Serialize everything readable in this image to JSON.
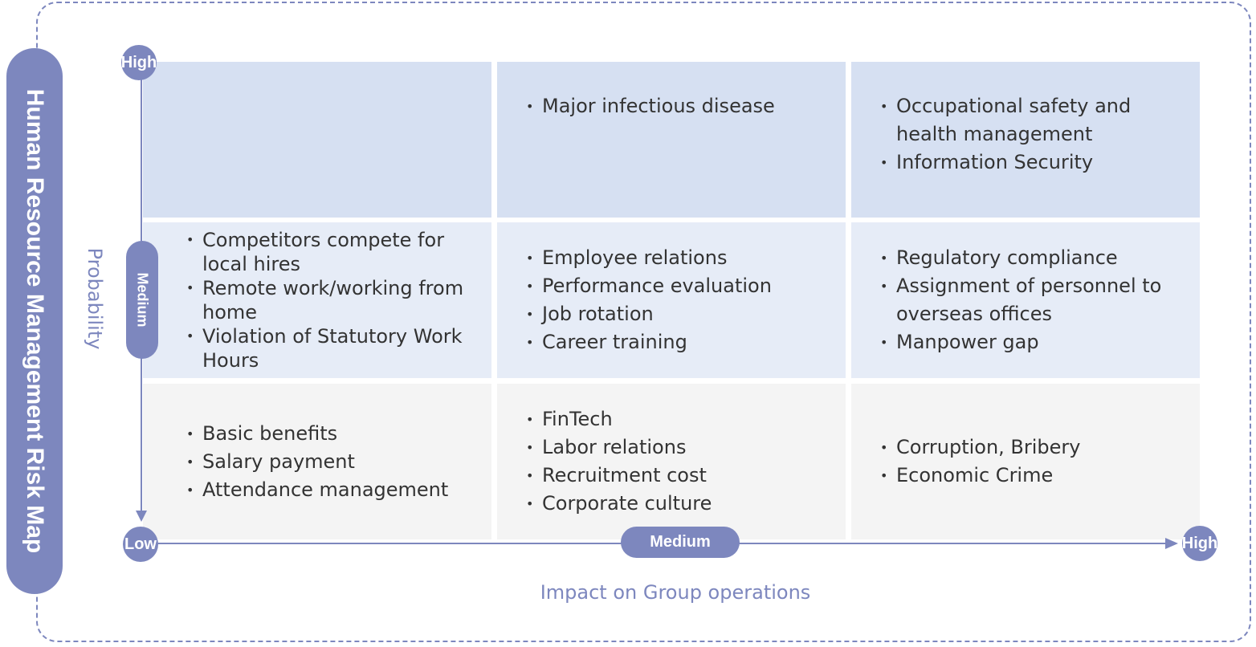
{
  "title": "Human Resource Management Risk Map",
  "y_axis": {
    "label": "Probability",
    "levels": [
      "High",
      "Medium",
      "Low"
    ]
  },
  "x_axis": {
    "label": "Impact on Group operations",
    "levels": [
      "Low",
      "Medium",
      "High"
    ]
  },
  "grid": {
    "rows": [
      {
        "cells": [
          {
            "items": []
          },
          {
            "items": [
              "Major infectious disease"
            ]
          },
          {
            "items": [
              "Occupational safety and health management",
              "Information Security"
            ]
          }
        ]
      },
      {
        "cells": [
          {
            "items": [
              "Competitors compete for local hires",
              "Remote work/working from home",
              "Violation of Statutory Work Hours"
            ]
          },
          {
            "items": [
              "Employee relations",
              "Performance evaluation",
              "Job rotation",
              "Career training"
            ]
          },
          {
            "items": [
              "Regulatory compliance",
              "Assignment of personnel to overseas offices",
              "Manpower gap"
            ]
          }
        ]
      },
      {
        "cells": [
          {
            "items": [
              "Basic benefits",
              "Salary payment",
              "Attendance management"
            ]
          },
          {
            "items": [
              "FinTech",
              "Labor relations",
              "Recruitment cost",
              "Corporate culture"
            ]
          },
          {
            "items": [
              "Corruption, Bribery",
              "Economic Crime"
            ]
          }
        ]
      }
    ]
  }
}
